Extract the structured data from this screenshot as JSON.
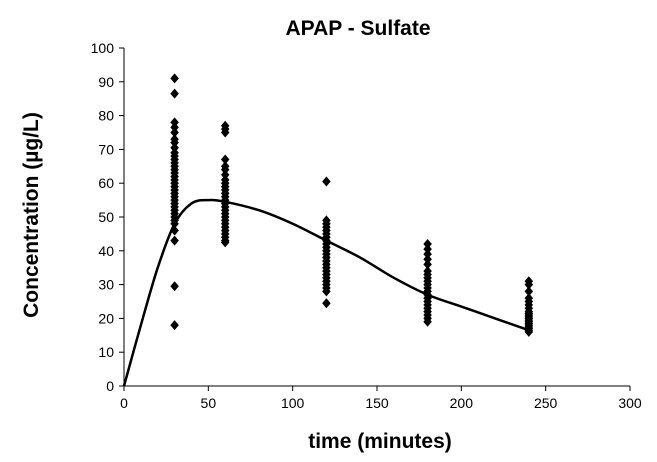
{
  "chart_data": {
    "type": "scatter",
    "title": "APAP - Sulfate",
    "xlabel": "time (minutes)",
    "ylabel": "Concentration (µg/L)",
    "xlim": [
      0,
      300
    ],
    "ylim": [
      0,
      100
    ],
    "xticks": [
      0,
      50,
      100,
      150,
      200,
      250,
      300
    ],
    "yticks": [
      0,
      10,
      20,
      30,
      40,
      50,
      60,
      70,
      80,
      90,
      100
    ],
    "grid": false,
    "legend": "none",
    "series": [
      {
        "type": "scatter",
        "marker": "diamond",
        "color": "#000000",
        "points": [
          [
            30,
            91
          ],
          [
            30,
            86.5
          ],
          [
            30,
            78
          ],
          [
            30,
            76.5
          ],
          [
            30,
            75
          ],
          [
            30,
            73
          ],
          [
            30,
            72
          ],
          [
            30,
            70.5
          ],
          [
            30,
            69
          ],
          [
            30,
            68
          ],
          [
            30,
            67
          ],
          [
            30,
            66
          ],
          [
            30,
            65
          ],
          [
            30,
            64
          ],
          [
            30,
            63
          ],
          [
            30,
            62
          ],
          [
            30,
            61
          ],
          [
            30,
            60
          ],
          [
            30,
            59
          ],
          [
            30,
            58
          ],
          [
            30,
            57
          ],
          [
            30,
            56
          ],
          [
            30,
            55
          ],
          [
            30,
            54
          ],
          [
            30,
            53
          ],
          [
            30,
            52
          ],
          [
            30,
            51
          ],
          [
            30,
            50
          ],
          [
            30,
            49
          ],
          [
            30,
            48
          ],
          [
            30,
            46
          ],
          [
            30,
            43
          ],
          [
            30,
            29.5
          ],
          [
            30,
            18
          ],
          [
            60,
            77
          ],
          [
            60,
            76
          ],
          [
            60,
            75
          ],
          [
            60,
            67
          ],
          [
            60,
            65
          ],
          [
            60,
            64
          ],
          [
            60,
            62.5
          ],
          [
            60,
            61
          ],
          [
            60,
            60
          ],
          [
            60,
            59
          ],
          [
            60,
            58
          ],
          [
            60,
            57
          ],
          [
            60,
            56
          ],
          [
            60,
            55
          ],
          [
            60,
            54
          ],
          [
            60,
            53
          ],
          [
            60,
            52
          ],
          [
            60,
            51
          ],
          [
            60,
            50
          ],
          [
            60,
            49
          ],
          [
            60,
            48
          ],
          [
            60,
            47
          ],
          [
            60,
            46
          ],
          [
            60,
            45
          ],
          [
            60,
            44
          ],
          [
            60,
            43
          ],
          [
            60,
            42.5
          ],
          [
            120,
            60.5
          ],
          [
            120,
            49
          ],
          [
            120,
            48
          ],
          [
            120,
            47
          ],
          [
            120,
            46
          ],
          [
            120,
            45
          ],
          [
            120,
            44
          ],
          [
            120,
            43
          ],
          [
            120,
            42
          ],
          [
            120,
            41
          ],
          [
            120,
            40
          ],
          [
            120,
            39
          ],
          [
            120,
            38
          ],
          [
            120,
            37
          ],
          [
            120,
            36
          ],
          [
            120,
            35
          ],
          [
            120,
            34
          ],
          [
            120,
            33
          ],
          [
            120,
            32
          ],
          [
            120,
            31
          ],
          [
            120,
            30
          ],
          [
            120,
            29
          ],
          [
            120,
            28
          ],
          [
            120,
            24.5
          ],
          [
            180,
            42
          ],
          [
            180,
            40.5
          ],
          [
            180,
            39
          ],
          [
            180,
            37.5
          ],
          [
            180,
            36
          ],
          [
            180,
            34
          ],
          [
            180,
            33
          ],
          [
            180,
            32
          ],
          [
            180,
            31
          ],
          [
            180,
            30
          ],
          [
            180,
            29
          ],
          [
            180,
            28
          ],
          [
            180,
            27
          ],
          [
            180,
            26
          ],
          [
            180,
            25
          ],
          [
            180,
            24
          ],
          [
            180,
            23
          ],
          [
            180,
            22
          ],
          [
            180,
            21
          ],
          [
            180,
            20
          ],
          [
            180,
            19
          ],
          [
            240,
            31
          ],
          [
            240,
            30
          ],
          [
            240,
            28
          ],
          [
            240,
            26
          ],
          [
            240,
            25
          ],
          [
            240,
            24
          ],
          [
            240,
            23
          ],
          [
            240,
            22
          ],
          [
            240,
            21.5
          ],
          [
            240,
            21
          ],
          [
            240,
            20.5
          ],
          [
            240,
            20
          ],
          [
            240,
            19.5
          ],
          [
            240,
            19
          ],
          [
            240,
            18.5
          ],
          [
            240,
            18
          ],
          [
            240,
            17.5
          ],
          [
            240,
            17
          ],
          [
            240,
            16.5
          ],
          [
            240,
            16
          ]
        ]
      },
      {
        "type": "line",
        "color": "#000000",
        "points": [
          [
            0,
            0
          ],
          [
            10,
            18
          ],
          [
            20,
            35
          ],
          [
            30,
            48
          ],
          [
            40,
            54
          ],
          [
            50,
            55
          ],
          [
            60,
            54.5
          ],
          [
            80,
            52
          ],
          [
            100,
            48
          ],
          [
            120,
            43
          ],
          [
            140,
            38
          ],
          [
            160,
            32
          ],
          [
            180,
            27
          ],
          [
            200,
            23.5
          ],
          [
            220,
            20
          ],
          [
            240,
            16.5
          ]
        ]
      }
    ]
  }
}
